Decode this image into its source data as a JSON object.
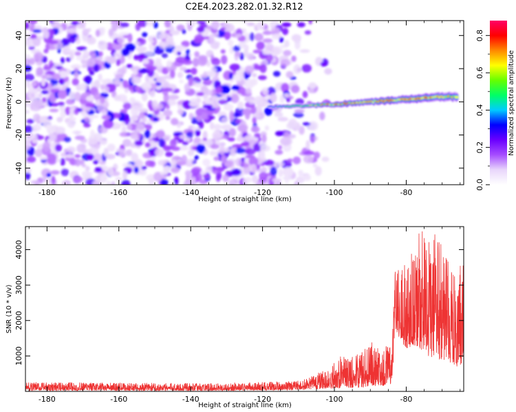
{
  "title": "C2E4.2023.282.01.32.R12",
  "chart_data": [
    {
      "type": "heatmap",
      "xlabel": "Height of straight line (km)",
      "ylabel": "Frequency (Hz)",
      "xlim": [
        -186,
        -64
      ],
      "ylim": [
        -50,
        49
      ],
      "x_ticks": [
        -180,
        -160,
        -140,
        -120,
        -100,
        -80
      ],
      "x_tick_labels": [
        "-180",
        "-160",
        "-140",
        "-120",
        "-100",
        "-80"
      ],
      "y_ticks": [
        -40,
        -20,
        0,
        20,
        40
      ],
      "y_tick_labels": [
        "-40",
        "-20",
        "0",
        "20",
        "40"
      ],
      "noise_region_x": [
        -186,
        -104
      ],
      "signal_track": {
        "x": [
          -118,
          -110,
          -100,
          -90,
          -80,
          -70,
          -66
        ],
        "frequency": [
          -3,
          -2.5,
          -1.5,
          0,
          1.5,
          3,
          3
        ],
        "peak_amplitude": [
          0.4,
          0.55,
          0.75,
          0.7,
          0.85,
          0.8,
          0.6
        ]
      },
      "colorbar": {
        "label": "Normalized spectral amplitude",
        "range": [
          0.0,
          0.88
        ],
        "ticks": [
          0.0,
          0.2,
          0.4,
          0.6,
          0.8
        ],
        "tick_labels": [
          "0.0",
          "0.2",
          "0.4",
          "0.6",
          "0.8"
        ],
        "colors": [
          "#ffffff",
          "#e8d6fb",
          "#a64dff",
          "#6a00ff",
          "#0000ff",
          "#00ccff",
          "#00ff66",
          "#66ff00",
          "#ffff00",
          "#ff8800",
          "#ff0000",
          "#ff0066"
        ]
      },
      "grid": false
    },
    {
      "type": "line",
      "xlabel": "Height of straight line (km)",
      "ylabel": "SNR (10 * v/v)",
      "xlim": [
        -186,
        -64
      ],
      "ylim": [
        0,
        4650
      ],
      "x_ticks": [
        -180,
        -160,
        -140,
        -120,
        -100,
        -80
      ],
      "x_tick_labels": [
        "-180",
        "-160",
        "-140",
        "-120",
        "-100",
        "-80"
      ],
      "y_ticks": [
        1000,
        2000,
        3000,
        4000
      ],
      "y_tick_labels": [
        "1000",
        "2000",
        "3000",
        "4000"
      ],
      "color": "#ee3333",
      "envelope": {
        "x": [
          -186,
          -130,
          -110,
          -106,
          -102,
          -98,
          -95,
          -92,
          -90,
          -88,
          -86,
          -84,
          -83,
          -82,
          -80,
          -78,
          -76,
          -74,
          -72,
          -70,
          -68,
          -66,
          -64
        ],
        "low": [
          20,
          20,
          40,
          60,
          80,
          90,
          100,
          120,
          150,
          150,
          160,
          200,
          1800,
          1500,
          1200,
          1300,
          1200,
          1000,
          900,
          900,
          800,
          700,
          800
        ],
        "high": [
          260,
          230,
          300,
          450,
          650,
          1050,
          1000,
          1200,
          1400,
          1350,
          1300,
          1250,
          3700,
          3500,
          3600,
          4000,
          4650,
          4200,
          4500,
          4100,
          3600,
          3300,
          3800
        ]
      },
      "grid": false
    }
  ]
}
